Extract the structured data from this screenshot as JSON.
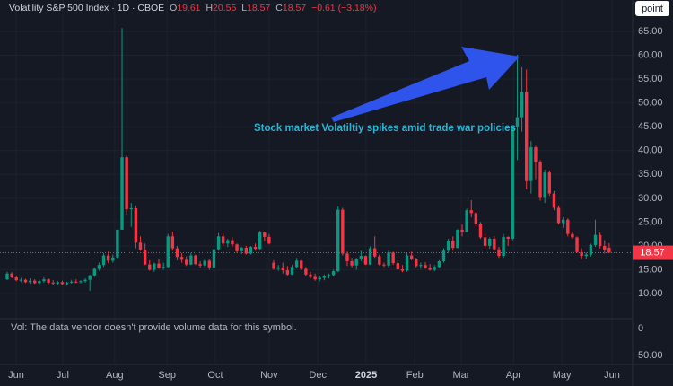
{
  "chart_data": {
    "type": "candlestick",
    "legend": {
      "symbol": "Volatility S&P 500 Index · 1D · CBOE",
      "open_label": "O",
      "open": "19.61",
      "high_label": "H",
      "high": "20.55",
      "low_label": "L",
      "low": "18.57",
      "close_label": "C",
      "close": "18.57",
      "change": "−0.61 (−3.18%)"
    },
    "annotation": "Stock market Volatiltiy spikes amid trade war policies",
    "button": "point",
    "up_color": "#089981",
    "down_color": "#f23645",
    "x": [
      0,
      1,
      2,
      3,
      4,
      5,
      6,
      7,
      8,
      9,
      10,
      11,
      12,
      13,
      14,
      15,
      16,
      17,
      18,
      19,
      20,
      21,
      22,
      23,
      24,
      25,
      26,
      27,
      28,
      29,
      30,
      31,
      32,
      33,
      34,
      35,
      36,
      37,
      38,
      39,
      40,
      41,
      42,
      43,
      44,
      45,
      46,
      47,
      48,
      49,
      50,
      51,
      52,
      53,
      54,
      55,
      56,
      57,
      58,
      59,
      60,
      61,
      62,
      63,
      64,
      65,
      66,
      67,
      68,
      69,
      70,
      71,
      72,
      73,
      74,
      75,
      76,
      77,
      78,
      79,
      80,
      81,
      82,
      83,
      84,
      85,
      86,
      87,
      88,
      89,
      90,
      91,
      92,
      93,
      94,
      95,
      96,
      97,
      98,
      99,
      100,
      101,
      102,
      103,
      104,
      105,
      106,
      107,
      108,
      109,
      110,
      111,
      112,
      113,
      114,
      115,
      116,
      117,
      118,
      119,
      120,
      121,
      122,
      123,
      124,
      125,
      126,
      127,
      128,
      129,
      130,
      131
    ],
    "open": [
      13.0,
      14.2,
      13.4,
      12.8,
      12.9,
      12.4,
      12.7,
      12.2,
      12.6,
      13.0,
      12.3,
      12.1,
      12.4,
      12.0,
      12.3,
      12.5,
      12.4,
      12.6,
      12.9,
      13.8,
      15.2,
      16.0,
      18.0,
      16.9,
      17.6,
      23.4,
      38.6,
      27.7,
      27.9,
      20.7,
      19.2,
      16.1,
      15.0,
      16.3,
      15.4,
      15.6,
      22.0,
      19.5,
      17.7,
      17.1,
      16.1,
      18.0,
      16.2,
      15.9,
      16.9,
      15.5,
      19.3,
      22.0,
      20.5,
      21.2,
      20.3,
      18.9,
      19.6,
      18.4,
      19.8,
      19.4,
      22.8,
      21.9,
      16.5,
      15.2,
      15.5,
      14.9,
      14.0,
      15.6,
      16.9,
      15.2,
      14.0,
      13.5,
      13.0,
      13.3,
      13.6,
      13.9,
      14.7,
      27.6,
      18.4,
      16.8,
      15.9,
      17.3,
      17.9,
      16.1,
      19.5,
      17.8,
      16.1,
      15.9,
      18.6,
      16.4,
      15.1,
      14.8,
      18.0,
      17.2,
      15.8,
      16.0,
      15.4,
      15.0,
      15.6,
      16.8,
      19.0,
      21.1,
      19.6,
      23.4,
      23.0,
      27.5,
      26.9,
      24.7,
      21.8,
      20.0,
      21.5,
      19.3,
      17.9,
      21.9,
      21.5,
      45.0,
      47.0,
      52.3,
      33.6,
      40.7,
      37.6,
      30.1,
      35.4,
      31.0,
      28.0,
      24.8,
      25.5,
      22.5,
      21.8,
      18.7,
      17.9,
      18.2,
      20.2,
      22.3,
      20.0,
      19.61
    ],
    "high": [
      14.6,
      14.5,
      13.8,
      13.3,
      13.1,
      13.2,
      13.0,
      12.9,
      13.4,
      13.2,
      12.8,
      12.6,
      12.7,
      12.5,
      12.9,
      13.0,
      12.8,
      13.2,
      14.0,
      15.5,
      16.5,
      18.5,
      18.8,
      18.2,
      23.4,
      65.7,
      39.0,
      29.0,
      28.5,
      22.0,
      20.5,
      17.0,
      16.5,
      17.2,
      16.5,
      22.5,
      23.0,
      20.0,
      18.5,
      17.8,
      18.5,
      18.2,
      16.8,
      17.3,
      17.2,
      19.5,
      22.7,
      22.6,
      21.5,
      21.8,
      20.5,
      19.8,
      20.0,
      20.0,
      20.5,
      23.2,
      23.0,
      22.5,
      17.0,
      16.0,
      16.5,
      15.8,
      16.0,
      17.5,
      17.0,
      15.6,
      14.6,
      14.2,
      13.8,
      14.0,
      14.2,
      15.0,
      28.3,
      28.0,
      18.8,
      17.5,
      17.5,
      19.0,
      18.0,
      19.9,
      22.0,
      18.2,
      16.5,
      19.0,
      18.8,
      17.0,
      16.0,
      18.6,
      18.8,
      17.5,
      16.5,
      16.6,
      16.2,
      16.0,
      17.0,
      19.5,
      21.5,
      22.0,
      23.5,
      24.5,
      27.8,
      29.6,
      27.2,
      25.0,
      22.5,
      21.8,
      22.0,
      19.8,
      22.5,
      22.0,
      45.3,
      60.1,
      57.5,
      57.0,
      42.0,
      41.0,
      38.0,
      36.0,
      35.8,
      31.5,
      28.5,
      26.0,
      25.8,
      23.0,
      22.0,
      19.5,
      18.6,
      20.5,
      25.5,
      22.8,
      21.2,
      20.55
    ],
    "low": [
      12.8,
      13.2,
      12.6,
      12.4,
      12.2,
      12.1,
      12.0,
      11.9,
      12.3,
      12.0,
      11.8,
      11.9,
      11.9,
      11.8,
      12.1,
      12.2,
      12.1,
      12.3,
      10.6,
      13.5,
      14.8,
      15.6,
      16.4,
      16.5,
      17.4,
      23.4,
      26.5,
      24.0,
      19.5,
      19.0,
      16.0,
      14.8,
      14.6,
      15.2,
      15.0,
      15.4,
      19.0,
      17.0,
      16.5,
      15.8,
      16.0,
      16.0,
      15.4,
      15.5,
      15.0,
      15.3,
      19.0,
      20.0,
      19.8,
      19.8,
      18.5,
      18.3,
      18.2,
      18.2,
      19.0,
      19.2,
      21.0,
      20.3,
      15.0,
      14.8,
      14.2,
      13.8,
      13.9,
      15.3,
      15.0,
      13.6,
      13.2,
      12.7,
      12.6,
      12.8,
      13.2,
      13.6,
      14.5,
      18.0,
      15.8,
      15.5,
      15.0,
      16.8,
      16.0,
      16.0,
      17.5,
      15.9,
      15.6,
      15.5,
      16.0,
      15.0,
      14.5,
      14.6,
      17.0,
      15.5,
      15.2,
      15.2,
      14.8,
      14.7,
      15.4,
      16.5,
      18.5,
      19.0,
      19.5,
      22.0,
      22.8,
      26.0,
      24.0,
      21.5,
      19.5,
      19.4,
      19.0,
      17.5,
      17.5,
      20.0,
      21.2,
      38.0,
      44.0,
      31.9,
      31.0,
      34.0,
      29.5,
      29.0,
      30.5,
      27.5,
      24.5,
      23.8,
      22.0,
      21.5,
      18.5,
      17.2,
      17.3,
      17.8,
      19.8,
      19.5,
      18.4,
      18.57
    ],
    "close": [
      14.2,
      13.4,
      12.8,
      12.9,
      12.4,
      12.7,
      12.2,
      12.6,
      13.0,
      12.3,
      12.1,
      12.4,
      12.0,
      12.3,
      12.5,
      12.4,
      12.6,
      12.9,
      13.8,
      15.2,
      16.0,
      18.0,
      16.9,
      17.6,
      23.4,
      38.6,
      27.7,
      27.9,
      20.7,
      19.2,
      16.1,
      15.0,
      16.3,
      15.4,
      15.6,
      22.0,
      19.5,
      17.7,
      17.1,
      16.1,
      18.0,
      16.2,
      15.9,
      16.9,
      15.5,
      19.3,
      22.0,
      20.5,
      21.2,
      20.3,
      18.9,
      19.6,
      18.4,
      19.8,
      19.4,
      22.8,
      21.9,
      20.5,
      15.2,
      15.5,
      14.9,
      14.0,
      15.6,
      16.9,
      15.2,
      14.0,
      13.5,
      13.0,
      13.3,
      13.6,
      13.9,
      14.7,
      27.6,
      18.4,
      16.8,
      15.9,
      17.3,
      17.9,
      16.1,
      19.5,
      17.8,
      16.1,
      15.9,
      18.6,
      16.4,
      15.1,
      14.8,
      18.0,
      17.2,
      15.8,
      16.0,
      15.4,
      15.0,
      15.6,
      16.8,
      19.0,
      21.1,
      19.6,
      23.4,
      23.0,
      27.5,
      26.9,
      24.7,
      21.8,
      20.0,
      21.5,
      19.3,
      17.9,
      21.9,
      21.5,
      45.0,
      47.0,
      52.3,
      33.6,
      40.7,
      37.6,
      30.1,
      35.4,
      31.0,
      28.0,
      24.8,
      25.5,
      22.5,
      21.8,
      18.7,
      17.9,
      18.2,
      20.2,
      22.3,
      20.0,
      19.18,
      18.57
    ],
    "last_price": 18.57,
    "xlim": [
      -1.56,
      136.1
    ],
    "xticks": [
      {
        "value": 1.95,
        "label": "Jun"
      },
      {
        "value": 12.1,
        "label": "Jul"
      },
      {
        "value": 23.4,
        "label": "Aug"
      },
      {
        "value": 34.8,
        "label": "Sep"
      },
      {
        "value": 45.3,
        "label": "Oct"
      },
      {
        "value": 57,
        "label": "Nov"
      },
      {
        "value": 67.6,
        "label": "Dec"
      },
      {
        "value": 78.1,
        "label": "2025"
      },
      {
        "value": 88.7,
        "label": "Feb"
      },
      {
        "value": 98.8,
        "label": "Mar"
      },
      {
        "value": 110.2,
        "label": "Apr"
      },
      {
        "value": 120.7,
        "label": "May"
      },
      {
        "value": 131.6,
        "label": "Jun"
      }
    ],
    "ylim": [
      4.74,
      71.59
    ],
    "yticks": [
      {
        "value": 10,
        "label": "10.00"
      },
      {
        "value": 15,
        "label": "15.00"
      },
      {
        "value": 20,
        "label": "20.00"
      },
      {
        "value": 25,
        "label": "25.00"
      },
      {
        "value": 30,
        "label": "30.00"
      },
      {
        "value": 35,
        "label": "35.00"
      },
      {
        "value": 40,
        "label": "40.00"
      },
      {
        "value": 45,
        "label": "45.00"
      },
      {
        "value": 50,
        "label": "50.00"
      },
      {
        "value": 55,
        "label": "55.00"
      },
      {
        "value": 60,
        "label": "60.00"
      },
      {
        "value": 65,
        "label": "65.00"
      }
    ],
    "grid": true,
    "volume_pane": {
      "note": "Vol: The data vendor doesn't provide volume data for this symbol.",
      "ylim": [
        0,
        50
      ],
      "yticks": [
        0,
        {
          "value": 50,
          "label": "50.00"
        }
      ]
    }
  }
}
